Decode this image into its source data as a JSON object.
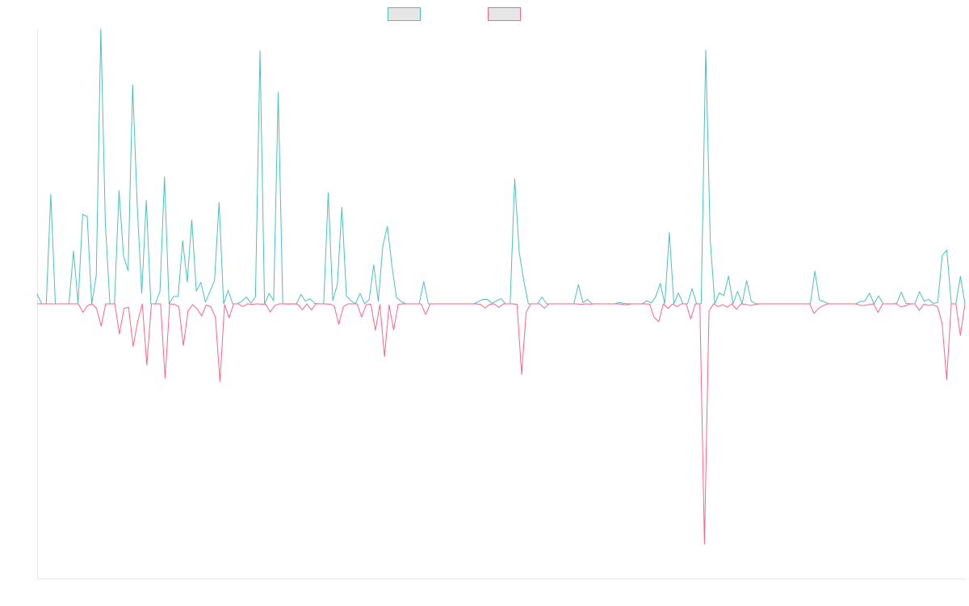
{
  "chart_data": {
    "type": "line",
    "title": "",
    "xlabel": "",
    "ylabel": "",
    "grid": false,
    "legend": "top-center",
    "ylim": [
      -1.0,
      1.0
    ],
    "series": [
      {
        "color": "#4bc0c0",
        "fill": "#e6e6e6",
        "values": [
          0.036,
          0,
          0,
          0.398,
          0,
          0,
          0,
          0,
          0.192,
          0,
          0.326,
          0.318,
          0,
          0.103,
          1.0,
          0.289,
          0,
          0,
          0.412,
          0.174,
          0.121,
          0.797,
          0.36,
          0.038,
          0.377,
          0,
          0,
          0.045,
          0.462,
          0,
          0.027,
          0.027,
          0.23,
          0.079,
          0.306,
          0.046,
          0.078,
          0.006,
          0.045,
          0.084,
          0.369,
          0,
          0.049,
          0,
          0,
          0.009,
          0.025,
          0.003,
          0.025,
          0.921,
          0,
          0.038,
          0.011,
          0.769,
          0,
          0,
          0,
          0,
          0.034,
          0.01,
          0.018,
          0.002,
          0,
          0,
          0.404,
          0.012,
          0.07,
          0.352,
          0.028,
          0.011,
          0,
          0.038,
          0,
          0.015,
          0.142,
          0.009,
          0.21,
          0.282,
          0.139,
          0.023,
          0.009,
          0,
          0,
          0,
          0,
          0.081,
          0,
          0,
          0,
          0,
          0,
          0,
          0,
          0,
          0,
          0,
          0,
          0.008,
          0.016,
          0.016,
          0.002,
          0.011,
          0.019,
          0,
          0,
          0.456,
          0.186,
          0.084,
          0,
          0,
          0,
          0.025,
          0,
          0,
          0,
          0,
          0,
          0,
          0,
          0.07,
          0.004,
          0.016,
          0,
          0,
          0,
          0,
          0,
          0,
          0.005,
          0.002,
          0,
          0,
          0,
          0,
          0.011,
          0.003,
          0.026,
          0.075,
          0,
          0.26,
          0,
          0.039,
          0,
          0,
          0.056,
          0,
          0,
          0.924,
          0.23,
          0,
          0.04,
          0.03,
          0.101,
          0,
          0.046,
          0,
          0.085,
          0.01,
          0,
          0,
          0,
          0,
          0,
          0,
          0,
          0,
          0,
          0,
          0,
          0,
          0,
          0.119,
          0.013,
          0.008,
          0,
          0,
          0,
          0,
          0,
          0,
          0,
          0.008,
          0.01,
          0.039,
          0,
          0.029,
          0,
          0,
          0,
          0.001,
          0.043,
          0.002,
          0,
          0,
          0.044,
          0.01,
          0.016,
          0.002,
          0.004,
          0.175,
          0.196,
          0,
          0,
          0.1,
          0
        ]
      },
      {
        "color": "#ff6384",
        "fill": "#e6e6e6",
        "values": [
          0,
          0,
          0,
          0,
          0,
          0,
          0,
          0,
          0,
          0,
          -0.031,
          -0.007,
          0,
          -0.017,
          -0.081,
          0,
          0,
          0,
          -0.11,
          -0.017,
          -0.012,
          -0.155,
          -0.064,
          0,
          -0.223,
          0,
          0,
          0,
          -0.27,
          0,
          -0.002,
          -0.01,
          -0.152,
          -0.026,
          -0.003,
          -0.018,
          -0.044,
          -0.004,
          -0.011,
          -0.048,
          -0.283,
          -0.003,
          -0.051,
          0,
          0,
          -0.01,
          0,
          -0.002,
          0,
          -0.001,
          -0.001,
          -0.03,
          -0.006,
          0,
          0,
          -0.001,
          0,
          -0.001,
          -0.022,
          0,
          -0.022,
          0,
          0,
          0,
          -0.001,
          -0.008,
          -0.075,
          -0.01,
          0,
          0,
          0,
          -0.048,
          -0.003,
          -0.001,
          -0.096,
          -0.003,
          -0.192,
          -0.004,
          -0.095,
          -0.002,
          0,
          0,
          0,
          0,
          0,
          -0.039,
          0,
          0,
          0,
          0,
          0,
          0,
          0,
          0,
          0,
          0,
          0,
          -0.002,
          -0.015,
          -0.002,
          0,
          -0.013,
          0,
          0,
          0,
          -0.002,
          -0.257,
          -0.03,
          0,
          0,
          0,
          -0.016,
          0,
          0,
          0,
          0,
          0,
          0,
          0,
          -0.002,
          0,
          -0.001,
          0,
          0,
          0,
          0,
          0,
          0,
          -0.001,
          -0.004,
          0,
          0,
          0,
          0,
          -0.001,
          -0.05,
          -0.065,
          0,
          -0.017,
          0,
          -0.01,
          0,
          0,
          -0.055,
          0,
          0,
          -0.875,
          -0.026,
          0,
          -0.01,
          -0.003,
          -0.012,
          0,
          -0.02,
          0,
          -0.002,
          -0.006,
          -0.003,
          0,
          0,
          0,
          0,
          0,
          0,
          0,
          0,
          0,
          0,
          0,
          0,
          -0.035,
          -0.016,
          -0.006,
          0,
          0,
          0,
          0,
          0,
          0,
          0,
          -0.005,
          -0.006,
          -0.003,
          0,
          -0.031,
          0,
          0,
          0,
          0,
          -0.011,
          -0.007,
          0,
          0,
          -0.024,
          -0.001,
          -0.006,
          -0.003,
          -0.011,
          -0.071,
          -0.276,
          0,
          0,
          -0.115,
          0
        ]
      }
    ]
  }
}
